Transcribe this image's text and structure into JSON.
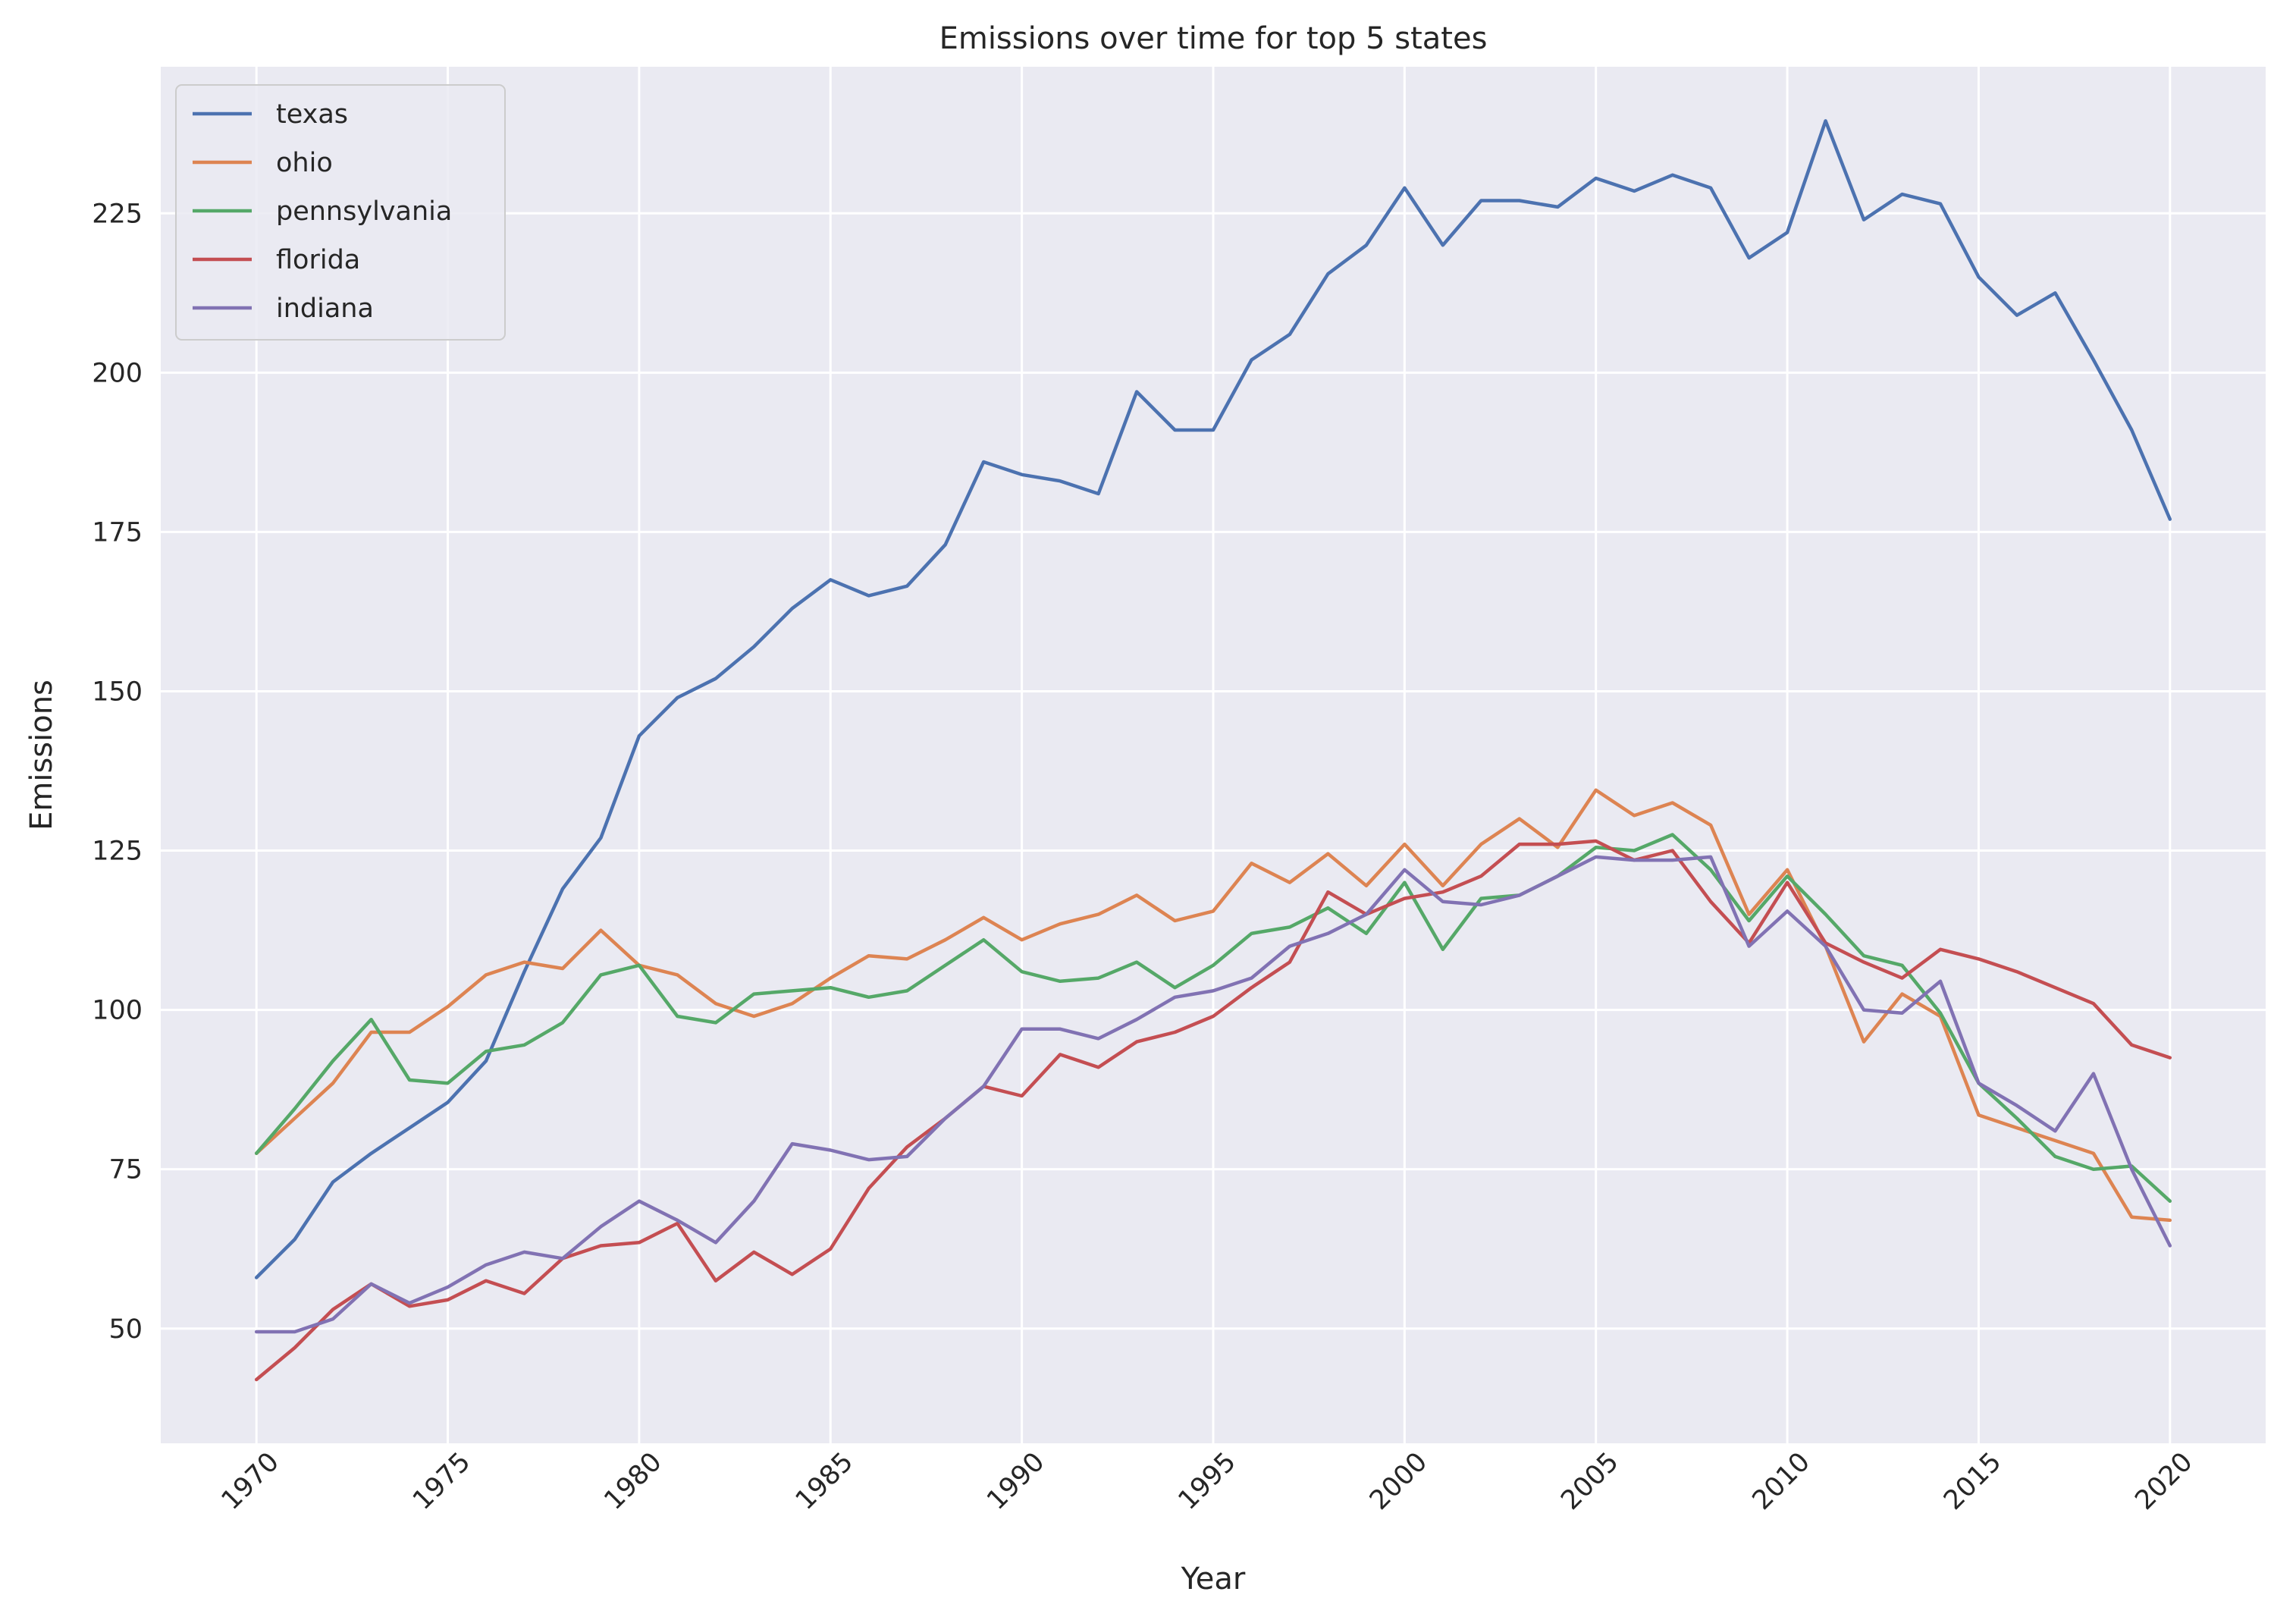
{
  "chart_data": {
    "type": "line",
    "title": "Emissions over time for top 5 states",
    "xlabel": "Year",
    "ylabel": "Emissions",
    "xlim": [
      1967.5,
      2022.5
    ],
    "ylim": [
      32,
      248
    ],
    "x_ticks": [
      1970,
      1975,
      1980,
      1985,
      1990,
      1995,
      2000,
      2005,
      2010,
      2015,
      2020
    ],
    "y_ticks": [
      50,
      75,
      100,
      125,
      150,
      175,
      200,
      225
    ],
    "x_tick_rotation": 45,
    "grid": true,
    "legend": "top-left",
    "background": "#eaeaf2",
    "grid_color": "#ffffff",
    "x": [
      1970,
      1971,
      1972,
      1973,
      1974,
      1975,
      1976,
      1977,
      1978,
      1979,
      1980,
      1981,
      1982,
      1983,
      1984,
      1985,
      1986,
      1987,
      1988,
      1989,
      1990,
      1991,
      1992,
      1993,
      1994,
      1995,
      1996,
      1997,
      1998,
      1999,
      2000,
      2001,
      2002,
      2003,
      2004,
      2005,
      2006,
      2007,
      2008,
      2009,
      2010,
      2011,
      2012,
      2013,
      2014,
      2015,
      2016,
      2017,
      2018,
      2019,
      2020
    ],
    "series": [
      {
        "name": "texas",
        "color": "#4c72b0",
        "values": [
          58,
          64,
          73,
          77.5,
          81.5,
          85.5,
          92,
          106,
          119,
          127,
          143,
          149,
          152,
          157,
          163,
          167.5,
          165,
          166.5,
          173,
          186,
          184,
          183,
          181,
          197,
          191,
          191,
          202,
          206,
          215.5,
          220,
          229,
          220,
          227,
          227,
          226,
          230.5,
          228.5,
          231,
          229,
          218,
          222,
          239.5,
          224,
          228,
          226.5,
          215,
          209,
          212.5,
          202,
          191,
          177
        ]
      },
      {
        "name": "ohio",
        "color": "#dd8452",
        "values": [
          77.5,
          83,
          88.5,
          96.5,
          96.5,
          100.5,
          105.5,
          107.5,
          106.5,
          112.5,
          107,
          105.5,
          101,
          99,
          101,
          105,
          108.5,
          108,
          111,
          114.5,
          111,
          113.5,
          115,
          118,
          114,
          115.5,
          123,
          120,
          124.5,
          119.5,
          126,
          119.5,
          126,
          130,
          125.5,
          134.5,
          130.5,
          132.5,
          129,
          115,
          122,
          110,
          95,
          102.5,
          99,
          83.5,
          81.5,
          79.5,
          77.5,
          67.5,
          67
        ]
      },
      {
        "name": "pennsylvania",
        "color": "#55a868",
        "values": [
          77.5,
          84.5,
          92,
          98.5,
          89,
          88.5,
          93.5,
          94.5,
          98,
          105.5,
          107,
          99,
          98,
          102.5,
          103,
          103.5,
          102,
          103,
          107,
          111,
          106,
          104.5,
          105,
          107.5,
          103.5,
          107,
          112,
          113,
          116,
          112,
          120,
          109.5,
          117.5,
          118,
          121,
          125.5,
          125,
          127.5,
          122,
          114,
          121,
          115,
          108.5,
          107,
          99.5,
          88.5,
          83,
          77,
          75,
          75.5,
          70
        ]
      },
      {
        "name": "florida",
        "color": "#c44e52",
        "values": [
          42,
          47,
          53,
          57,
          53.5,
          54.5,
          57.5,
          55.5,
          61,
          63,
          63.5,
          66.5,
          57.5,
          62,
          58.5,
          62.5,
          72,
          78.5,
          83,
          88,
          86.5,
          93,
          91,
          95,
          96.5,
          99,
          103.5,
          107.5,
          118.5,
          115,
          117.5,
          118.5,
          121,
          126,
          126,
          126.5,
          123.5,
          125,
          117,
          110.5,
          120,
          110.5,
          107.5,
          105,
          109.5,
          108,
          106,
          103.5,
          101,
          94.5,
          92.5
        ]
      },
      {
        "name": "indiana",
        "color": "#8172b3",
        "values": [
          49.5,
          49.5,
          51.5,
          57,
          54,
          56.5,
          60,
          62,
          61,
          66,
          70,
          67,
          63.5,
          70,
          79,
          78,
          76.5,
          77,
          83,
          88,
          97,
          97,
          95.5,
          98.5,
          102,
          103,
          105,
          110,
          112,
          115,
          122,
          117,
          116.5,
          118,
          121,
          124,
          123.5,
          123.5,
          124,
          110,
          115.5,
          110,
          100,
          99.5,
          104.5,
          88.5,
          85,
          81,
          90,
          75,
          63
        ]
      }
    ]
  }
}
